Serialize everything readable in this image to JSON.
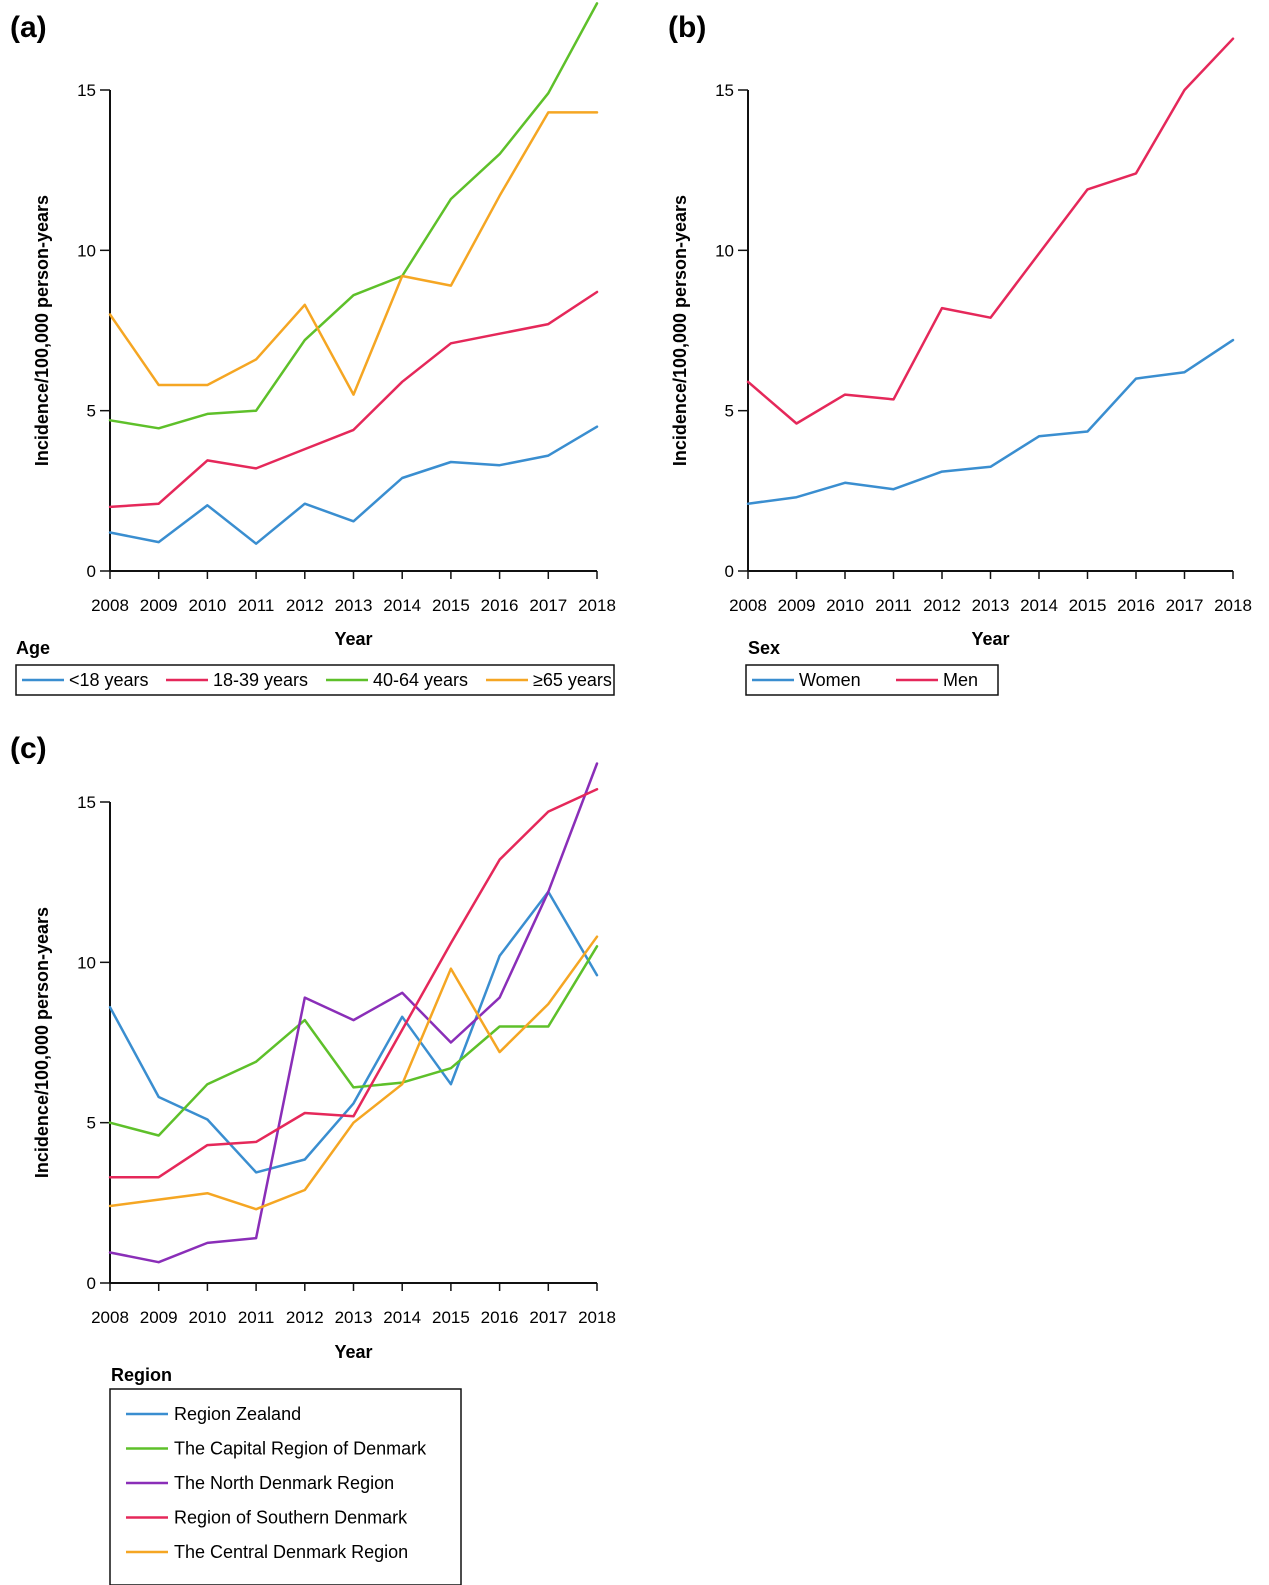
{
  "chart_data": [
    {
      "type": "line",
      "panel_label": "(a)",
      "xlabel": "Year",
      "ylabel": "Incidence/100,000 person-years",
      "x": [
        2008,
        2009,
        2010,
        2011,
        2012,
        2013,
        2014,
        2015,
        2016,
        2017,
        2018
      ],
      "ylim": [
        0,
        15
      ],
      "yticks": [
        0,
        5,
        10,
        15
      ],
      "legend_title": "Age",
      "legend_placement": "bottom",
      "series": [
        {
          "name": "<18 years",
          "color": "#3a8ed0",
          "values": [
            1.2,
            0.9,
            2.05,
            0.85,
            2.1,
            1.55,
            2.9,
            3.4,
            3.3,
            3.6,
            4.5
          ]
        },
        {
          "name": "18-39 years",
          "color": "#e5285a",
          "values": [
            2.0,
            2.1,
            3.45,
            3.2,
            3.8,
            4.4,
            5.9,
            7.1,
            7.4,
            7.7,
            8.7
          ]
        },
        {
          "name": "40-64 years",
          "color": "#5ec02a",
          "values": [
            4.7,
            4.45,
            4.9,
            5.0,
            7.2,
            8.6,
            9.2,
            11.6,
            13.0,
            14.9,
            17.7
          ]
        },
        {
          "name": "≥65 years",
          "color": "#f5a623",
          "values": [
            8.0,
            5.8,
            5.8,
            6.6,
            8.3,
            5.5,
            9.2,
            8.9,
            11.7,
            14.3,
            14.3
          ]
        }
      ]
    },
    {
      "type": "line",
      "panel_label": "(b)",
      "xlabel": "Year",
      "ylabel": "Incidence/100,000 person-years",
      "x": [
        2008,
        2009,
        2010,
        2011,
        2012,
        2013,
        2014,
        2015,
        2016,
        2017,
        2018
      ],
      "ylim": [
        0,
        15
      ],
      "yticks": [
        0,
        5,
        10,
        15
      ],
      "legend_title": "Sex",
      "legend_placement": "bottom",
      "series": [
        {
          "name": "Women",
          "color": "#3a8ed0",
          "values": [
            2.1,
            2.3,
            2.75,
            2.55,
            3.1,
            3.25,
            4.2,
            4.35,
            6.0,
            6.2,
            7.2
          ]
        },
        {
          "name": "Men",
          "color": "#e5285a",
          "values": [
            5.9,
            4.6,
            5.5,
            5.35,
            8.2,
            7.9,
            9.9,
            11.9,
            12.4,
            15.0,
            16.6
          ]
        }
      ]
    },
    {
      "type": "line",
      "panel_label": "(c)",
      "xlabel": "Year",
      "ylabel": "Incidence/100,000 person-years",
      "x": [
        2008,
        2009,
        2010,
        2011,
        2012,
        2013,
        2014,
        2015,
        2016,
        2017,
        2018
      ],
      "ylim": [
        0,
        15
      ],
      "yticks": [
        0,
        5,
        10,
        15
      ],
      "legend_title": "Region",
      "legend_placement": "bottom",
      "series": [
        {
          "name": "Region Zealand",
          "color": "#3a8ed0",
          "values": [
            8.6,
            5.8,
            5.1,
            3.45,
            3.85,
            5.6,
            8.3,
            6.2,
            10.2,
            12.2,
            9.6
          ]
        },
        {
          "name": "The Capital Region of Denmark",
          "color": "#5ec02a",
          "values": [
            5.0,
            4.6,
            6.2,
            6.9,
            8.2,
            6.1,
            6.25,
            6.7,
            8.0,
            8.0,
            10.5
          ]
        },
        {
          "name": "The North Denmark Region",
          "color": "#8a2eb8",
          "values": [
            0.95,
            0.65,
            1.25,
            1.4,
            8.9,
            8.2,
            9.05,
            7.5,
            8.9,
            12.2,
            16.2
          ]
        },
        {
          "name": "Region of Southern Denmark",
          "color": "#e5285a",
          "values": [
            3.3,
            3.3,
            4.3,
            4.4,
            5.3,
            5.2,
            7.9,
            10.6,
            13.2,
            14.7,
            15.4
          ]
        },
        {
          "name": "The Central Denmark Region",
          "color": "#f5a623",
          "values": [
            2.4,
            2.6,
            2.8,
            2.3,
            2.9,
            5.0,
            6.2,
            9.8,
            7.2,
            8.7,
            10.8
          ]
        }
      ]
    }
  ]
}
